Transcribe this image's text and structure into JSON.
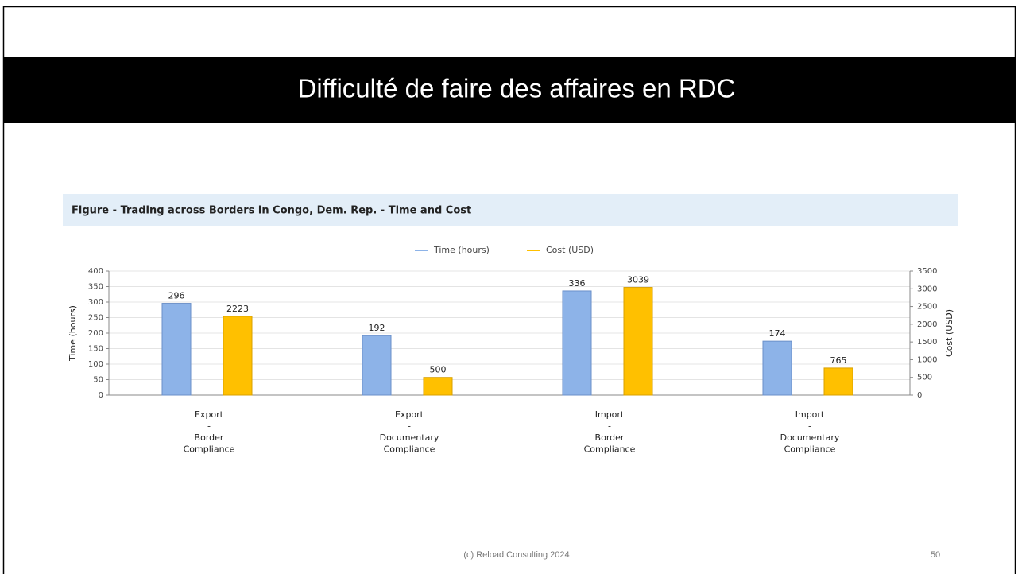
{
  "slide": {
    "title": "Difficulté de faire des affaires en RDC",
    "footer": "(c) Reload Consulting 2024",
    "page_number": "50"
  },
  "chart_data": {
    "type": "bar",
    "title": "Figure - Trading across Borders in Congo, Dem. Rep. - Time and Cost",
    "categories": [
      [
        "Export",
        "-",
        "Border",
        "Compliance"
      ],
      [
        "Export",
        "-",
        "Documentary",
        "Compliance"
      ],
      [
        "Import",
        "-",
        "Border",
        "Compliance"
      ],
      [
        "Import",
        "-",
        "Documentary",
        "Compliance"
      ]
    ],
    "series": [
      {
        "name": "Time (hours)",
        "color": "#8db3e8",
        "values": [
          296,
          192,
          336,
          174
        ]
      },
      {
        "name": "Cost (USD)",
        "color": "#ffc000",
        "axis": "y2",
        "values": [
          2223,
          500,
          3039,
          765
        ]
      }
    ],
    "ylabel": "Time (hours)",
    "y2label": "Cost (USD)",
    "ylim": [
      0,
      400
    ],
    "yticks": [
      0,
      50,
      100,
      150,
      200,
      250,
      300,
      350,
      400
    ],
    "y2lim": [
      0,
      3500
    ],
    "y2ticks": [
      0,
      500,
      1000,
      1500,
      2000,
      2500,
      3000,
      3500
    ],
    "grid": true,
    "legend": "top"
  }
}
